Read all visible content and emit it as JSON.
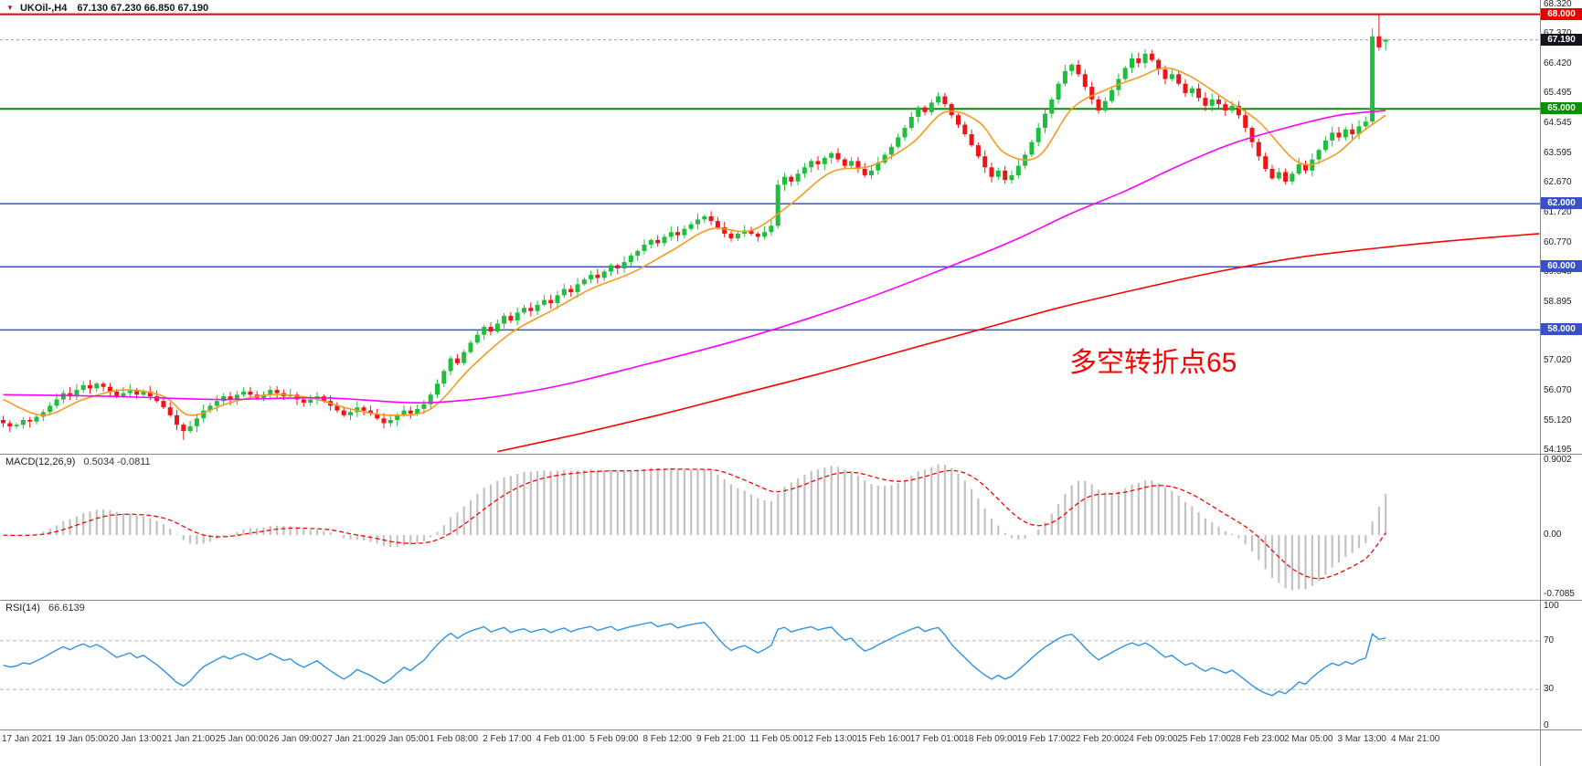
{
  "header": {
    "symbol_period": "UKOil-,H4",
    "ohlc": "67.130 67.230 66.850 67.190"
  },
  "annotation": {
    "text": "多空转折点65",
    "color": "#ff0000"
  },
  "panels": {
    "macd": {
      "label": "MACD(12,26,9)",
      "values": "0.5034 -0.0811",
      "range": [
        -0.78,
        0.97
      ],
      "ticks": [
        {
          "label": "0.9002",
          "value": 0.9002
        },
        {
          "label": "0.00",
          "value": 0
        },
        {
          "label": "-0.7085",
          "value": -0.7085
        }
      ]
    },
    "rsi": {
      "label": "RSI(14)",
      "value": "66.6139",
      "levels": [
        70,
        30
      ],
      "ticks": [
        {
          "label": "100",
          "value": 100
        },
        {
          "label": "70",
          "value": 70
        },
        {
          "label": "30",
          "value": 30
        },
        {
          "label": "0",
          "value": 0
        }
      ]
    }
  },
  "chart_data": {
    "type": "candlestick",
    "symbol": "UKOil-",
    "timeframe": "H4",
    "current_price": 67.19,
    "y_axis": {
      "domain": [
        54.08,
        68.45
      ],
      "ticks": [
        "68.320",
        "67.370",
        "66.420",
        "65.495",
        "64.545",
        "63.595",
        "62.670",
        "61.720",
        "60.770",
        "59.845",
        "58.895",
        "57.970",
        "57.020",
        "56.070",
        "55.120",
        "54.195"
      ]
    },
    "x_labels": [
      "17 Jan 2021",
      "19 Jan 05:00",
      "20 Jan 13:00",
      "21 Jan 21:00",
      "25 Jan 00:00",
      "26 Jan 09:00",
      "27 Jan 21:00",
      "29 Jan 05:00",
      "1 Feb 08:00",
      "2 Feb 17:00",
      "4 Feb 01:00",
      "5 Feb 09:00",
      "8 Feb 12:00",
      "9 Feb 21:00",
      "11 Feb 05:00",
      "12 Feb 13:00",
      "15 Feb 16:00",
      "17 Feb 01:00",
      "18 Feb 09:00",
      "19 Feb 17:00",
      "22 Feb 20:00",
      "24 Feb 09:00",
      "25 Feb 17:00",
      "28 Feb 23:00",
      "2 Mar 05:00",
      "3 Mar 13:00",
      "4 Mar 21:00"
    ],
    "first_open": 55.15,
    "closes": [
      55.05,
      54.95,
      55.0,
      55.15,
      55.1,
      55.25,
      55.4,
      55.6,
      55.8,
      56.0,
      55.9,
      56.1,
      56.25,
      56.15,
      56.3,
      56.2,
      56.05,
      55.9,
      56.0,
      56.1,
      55.95,
      56.05,
      55.9,
      55.75,
      55.55,
      55.3,
      55.0,
      54.8,
      54.95,
      55.2,
      55.45,
      55.6,
      55.75,
      55.9,
      55.8,
      55.95,
      56.05,
      55.95,
      55.85,
      55.95,
      56.1,
      56.0,
      55.9,
      55.95,
      55.8,
      55.7,
      55.8,
      55.9,
      55.75,
      55.6,
      55.45,
      55.3,
      55.4,
      55.55,
      55.45,
      55.35,
      55.2,
      55.05,
      55.15,
      55.3,
      55.45,
      55.35,
      55.5,
      55.65,
      55.95,
      56.3,
      56.7,
      57.1,
      56.95,
      57.3,
      57.6,
      57.85,
      58.1,
      57.95,
      58.2,
      58.45,
      58.3,
      58.55,
      58.7,
      58.6,
      58.8,
      58.95,
      58.85,
      59.1,
      59.3,
      59.2,
      59.45,
      59.6,
      59.75,
      59.65,
      59.85,
      60.05,
      59.95,
      60.15,
      60.35,
      60.5,
      60.7,
      60.85,
      60.75,
      60.95,
      61.1,
      61.0,
      61.2,
      61.35,
      61.5,
      61.6,
      61.45,
      61.25,
      61.05,
      60.9,
      61.05,
      61.15,
      61.05,
      60.95,
      61.1,
      61.3,
      62.6,
      62.85,
      62.7,
      62.95,
      63.15,
      63.35,
      63.25,
      63.45,
      63.6,
      63.4,
      63.2,
      63.35,
      63.1,
      62.9,
      63.05,
      63.3,
      63.55,
      63.8,
      64.1,
      64.4,
      64.75,
      65.05,
      64.9,
      65.2,
      65.4,
      65.15,
      64.8,
      64.5,
      64.2,
      63.85,
      63.5,
      63.15,
      62.85,
      63.05,
      62.75,
      62.9,
      63.2,
      63.55,
      63.95,
      64.4,
      64.85,
      65.3,
      65.8,
      66.2,
      66.4,
      66.1,
      65.7,
      65.3,
      64.95,
      65.25,
      65.6,
      65.95,
      66.3,
      66.6,
      66.45,
      66.75,
      66.55,
      66.25,
      65.95,
      66.1,
      65.8,
      65.5,
      65.65,
      65.35,
      65.1,
      65.3,
      65.15,
      64.95,
      65.1,
      64.8,
      64.4,
      63.95,
      63.5,
      63.1,
      62.8,
      63.0,
      62.7,
      62.95,
      63.25,
      63.05,
      63.4,
      63.7,
      64.0,
      64.25,
      64.1,
      64.35,
      64.2,
      64.45,
      64.6,
      67.3,
      66.95,
      67.19
    ],
    "candle_overrides": {
      "27": [
        55.0,
        55.06,
        54.52,
        54.8
      ],
      "116": [
        61.3,
        62.75,
        61.22,
        62.6
      ],
      "205": [
        64.6,
        67.55,
        64.5,
        67.3
      ],
      "206": [
        67.3,
        67.98,
        66.85,
        66.95
      ],
      "207": [
        67.13,
        67.23,
        66.85,
        67.19
      ]
    },
    "levels": [
      {
        "value": 68.0,
        "color": "#e60000",
        "label": "68.000",
        "width": 2
      },
      {
        "value": 65.0,
        "color": "#089000",
        "label": "65.000",
        "width": 2
      },
      {
        "value": 62.0,
        "color": "#3a50c8",
        "label": "62.000",
        "width": 1.5
      },
      {
        "value": 60.0,
        "color": "#3a50c8",
        "label": "60.000",
        "width": 1.5
      },
      {
        "value": 58.0,
        "color": "#3a50c8",
        "label": "58.000",
        "width": 1.5
      }
    ],
    "price_line": {
      "value": 67.19,
      "label": "67.190",
      "color": "#14141e"
    },
    "ma_lines": [
      {
        "name": "ma-fast-orange",
        "color": "#f59a23",
        "points": [
          [
            0,
            55.8
          ],
          [
            6,
            55.3
          ],
          [
            12,
            55.8
          ],
          [
            18,
            56.1
          ],
          [
            24,
            55.9
          ],
          [
            28,
            55.3
          ],
          [
            34,
            55.7
          ],
          [
            40,
            55.95
          ],
          [
            46,
            55.85
          ],
          [
            52,
            55.5
          ],
          [
            58,
            55.3
          ],
          [
            64,
            55.5
          ],
          [
            70,
            56.8
          ],
          [
            76,
            57.9
          ],
          [
            82,
            58.6
          ],
          [
            88,
            59.3
          ],
          [
            94,
            59.8
          ],
          [
            100,
            60.5
          ],
          [
            106,
            61.2
          ],
          [
            112,
            61.15
          ],
          [
            118,
            62.0
          ],
          [
            124,
            63.0
          ],
          [
            130,
            63.2
          ],
          [
            136,
            63.9
          ],
          [
            141,
            64.9
          ],
          [
            146,
            64.6
          ],
          [
            150,
            63.6
          ],
          [
            155,
            63.5
          ],
          [
            160,
            65.0
          ],
          [
            165,
            65.6
          ],
          [
            170,
            66.0
          ],
          [
            174,
            66.3
          ],
          [
            178,
            66.0
          ],
          [
            183,
            65.3
          ],
          [
            188,
            64.6
          ],
          [
            194,
            63.3
          ],
          [
            199,
            63.5
          ],
          [
            203,
            64.2
          ],
          [
            207,
            64.8
          ]
        ]
      },
      {
        "name": "ma-mid-magenta",
        "color": "#ff00ff",
        "points": [
          [
            0,
            55.95
          ],
          [
            16,
            55.9
          ],
          [
            32,
            55.8
          ],
          [
            48,
            55.85
          ],
          [
            64,
            55.7
          ],
          [
            80,
            56.1
          ],
          [
            96,
            56.9
          ],
          [
            112,
            57.8
          ],
          [
            128,
            58.9
          ],
          [
            144,
            60.2
          ],
          [
            152,
            60.9
          ],
          [
            160,
            61.7
          ],
          [
            168,
            62.4
          ],
          [
            176,
            63.2
          ],
          [
            184,
            63.9
          ],
          [
            192,
            64.4
          ],
          [
            200,
            64.8
          ],
          [
            207,
            64.95
          ]
        ]
      },
      {
        "name": "ma-slow-red",
        "color": "#ff0000",
        "points": [
          [
            74,
            54.15
          ],
          [
            86,
            54.7
          ],
          [
            98,
            55.3
          ],
          [
            110,
            55.95
          ],
          [
            122,
            56.6
          ],
          [
            134,
            57.3
          ],
          [
            146,
            58.0
          ],
          [
            158,
            58.7
          ],
          [
            170,
            59.3
          ],
          [
            182,
            59.85
          ],
          [
            194,
            60.3
          ],
          [
            206,
            60.6
          ],
          [
            218,
            60.85
          ],
          [
            230,
            61.05
          ]
        ]
      }
    ],
    "colors": {
      "up": "#1fbe3c",
      "down": "#f01414",
      "macd_hist": "#c2c2c2",
      "macd_signal": "#ff0000",
      "rsi_line": "#2e93e6"
    }
  }
}
